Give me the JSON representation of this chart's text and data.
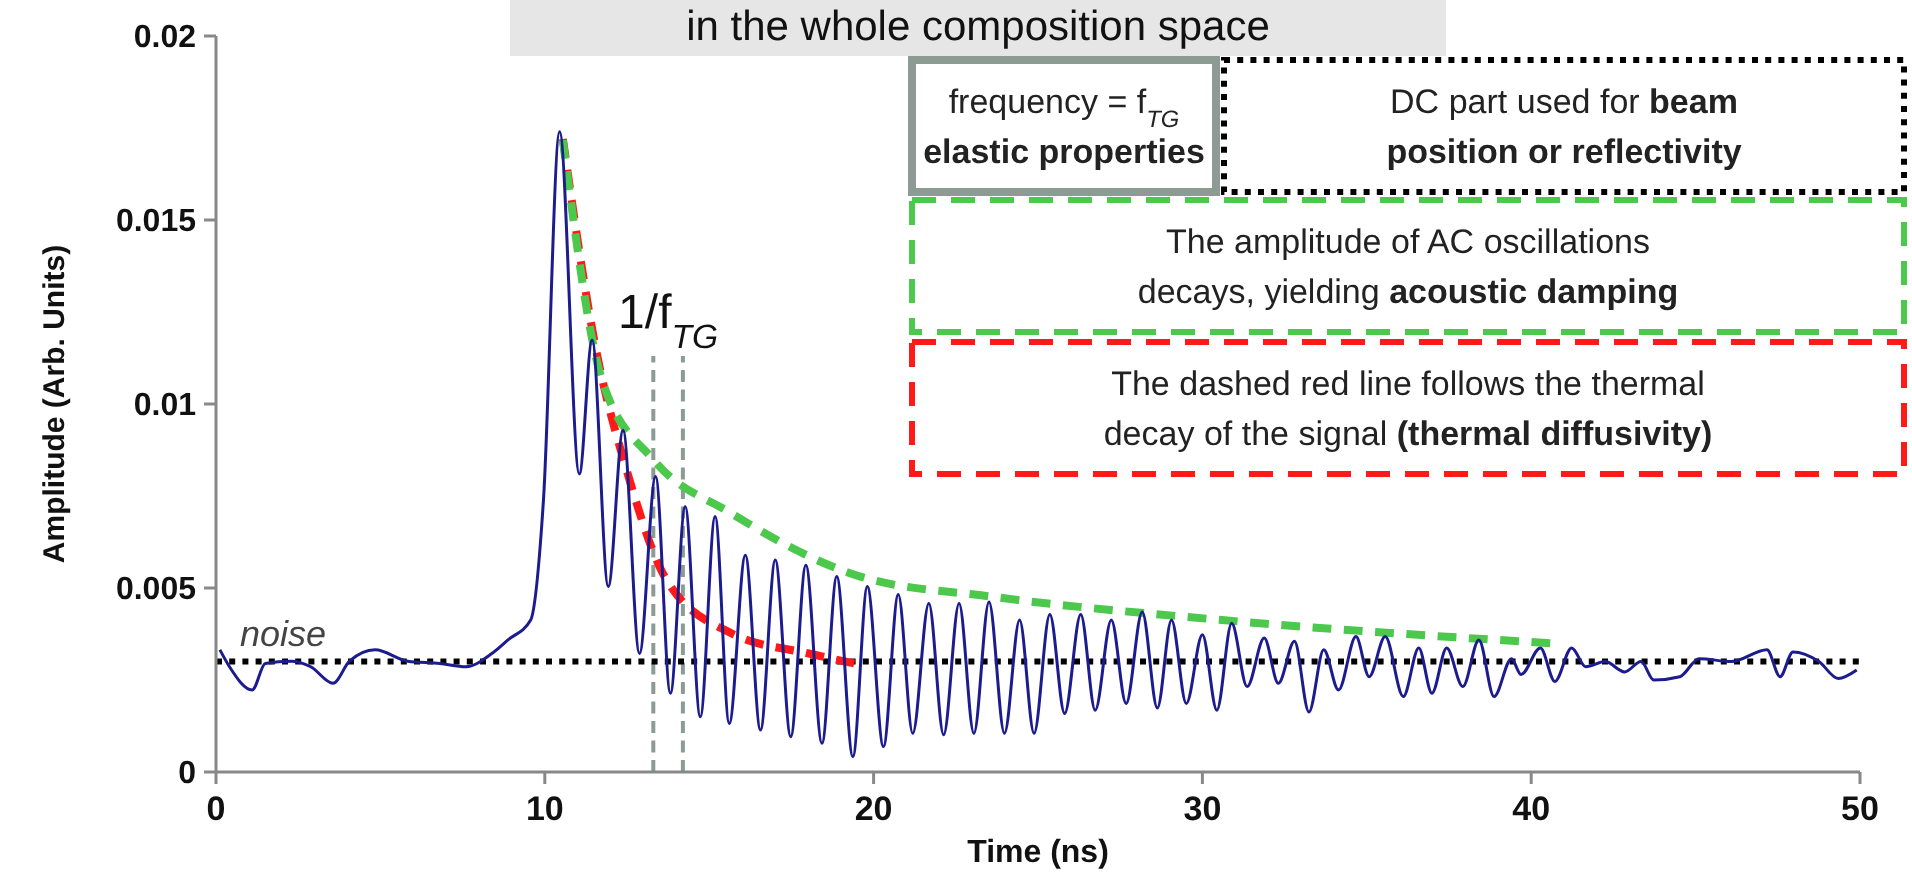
{
  "chart_data": {
    "type": "line",
    "title": "in the whole composition space",
    "xlabel": "Time (ns)",
    "ylabel": "Amplitude (Arb. Units)",
    "xlim": [
      0,
      50
    ],
    "xticks": [
      0,
      10,
      20,
      30,
      40,
      50
    ],
    "ylim": [
      0,
      0.02
    ],
    "yticks": [
      0,
      0.005,
      0.01,
      0.015,
      0.02
    ],
    "grid": false,
    "marker": "none",
    "series": [
      {
        "color": "#1c1c8f",
        "line_style": "solid",
        "x": [
          0.12,
          0.41,
          1.1,
          1.5,
          2.29,
          2.88,
          3.56,
          4.06,
          4.84,
          5.83,
          6.81,
          7.6,
          8.39,
          8.88,
          9.57,
          9.96,
          10.45,
          11.05,
          11.44,
          11.93,
          12.38,
          12.88,
          13.37,
          13.82,
          14.27,
          14.73,
          15.18,
          15.61,
          16.1,
          16.56,
          17.01,
          17.48,
          17.94,
          18.43,
          18.88,
          19.37,
          19.81,
          20.3,
          20.75,
          21.19,
          21.68,
          22.13,
          22.6,
          23.05,
          23.51,
          23.98,
          24.44,
          24.88,
          25.36,
          25.81,
          26.3,
          26.74,
          27.23,
          27.68,
          28.17,
          28.63,
          29.06,
          29.51,
          30.0,
          30.44,
          30.89,
          31.36,
          31.88,
          32.31,
          32.8,
          33.24,
          33.69,
          34.14,
          34.67,
          35.07,
          35.56,
          36.11,
          36.58,
          36.98,
          37.43,
          37.92,
          38.41,
          38.87,
          39.4,
          39.69,
          40.28,
          40.72,
          41.23,
          41.66,
          42.25,
          42.84,
          43.34,
          43.73,
          44.52,
          45.11,
          46.09,
          47.17,
          47.57,
          47.96,
          48.75,
          49.34,
          49.9
        ],
        "values": [
          0.00332,
          0.00286,
          0.00223,
          0.00295,
          0.00301,
          0.00286,
          0.00241,
          0.00301,
          0.00332,
          0.00301,
          0.00295,
          0.00286,
          0.00322,
          0.00359,
          0.00413,
          0.0074,
          0.0174,
          0.0081,
          0.01174,
          0.00504,
          0.00929,
          0.00322,
          0.00803,
          0.00214,
          0.00721,
          0.0015,
          0.00694,
          0.00132,
          0.00589,
          0.00114,
          0.00576,
          0.00096,
          0.00562,
          0.00078,
          0.00531,
          0.00042,
          0.00504,
          0.00069,
          0.00482,
          0.00105,
          0.00458,
          0.00101,
          0.00458,
          0.00105,
          0.00462,
          0.00105,
          0.00413,
          0.00105,
          0.00428,
          0.00159,
          0.00428,
          0.00168,
          0.00413,
          0.00186,
          0.00435,
          0.00174,
          0.00413,
          0.00186,
          0.00373,
          0.00168,
          0.00404,
          0.00232,
          0.00364,
          0.00241,
          0.00355,
          0.00163,
          0.00332,
          0.00223,
          0.00368,
          0.00259,
          0.00368,
          0.00205,
          0.00337,
          0.00214,
          0.00337,
          0.00232,
          0.00359,
          0.00205,
          0.00308,
          0.00265,
          0.00337,
          0.00246,
          0.00337,
          0.00286,
          0.003,
          0.00272,
          0.003,
          0.0025,
          0.00259,
          0.00308,
          0.003,
          0.00332,
          0.00259,
          0.00326,
          0.003,
          0.00254,
          0.00277
        ]
      },
      {
        "color": "#4cc84c",
        "line_style": "dashed",
        "x": [
          10.55,
          11.74,
          13.31,
          15.67,
          19.6,
          23.55,
          30.6,
          40.58
        ],
        "values": [
          0.01717,
          0.01065,
          0.00848,
          0.00703,
          0.00531,
          0.00477,
          0.00413,
          0.0035
        ]
      },
      {
        "color": "#ff1a1a",
        "line_style": "dashed",
        "x": [
          10.55,
          11.54,
          12.52,
          13.7,
          15.67,
          18.03,
          19.41
        ],
        "values": [
          0.0172,
          0.01156,
          0.00811,
          0.00522,
          0.00377,
          0.00322,
          0.00295
        ]
      }
    ],
    "ref_lines": [
      {
        "axis": "x",
        "value": 13.3,
        "color": "#8c9c94",
        "line_style": "dashed"
      },
      {
        "axis": "x",
        "value": 14.2,
        "color": "#8c9c94",
        "line_style": "dashed"
      },
      {
        "axis": "y",
        "value": 0.003,
        "label": "noise",
        "color": "#000000",
        "line_style": "dotted"
      }
    ],
    "annotations": [
      "frequency = f$_{TG}$",
      "elastic properties",
      "DC part used for",
      "beam position or reflectivity",
      "The amplitude of AC oscillations decays, yielding",
      "acoustic damping",
      "The dashed red line follows the thermal decay of the signal",
      "(thermal diffusivity)",
      "1/f$_{TG}$"
    ]
  }
}
